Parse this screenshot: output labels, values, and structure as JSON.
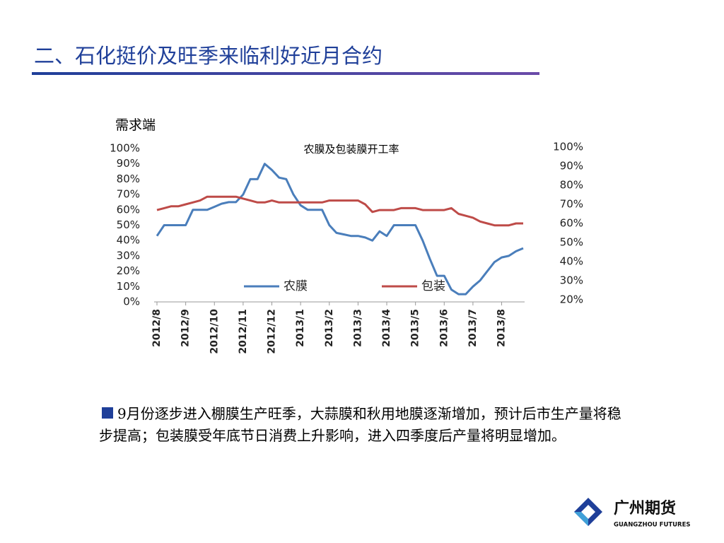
{
  "header": {
    "title": "二、石化挺价及旺季来临利好近月合约"
  },
  "section_label": "需求端",
  "chart_data": {
    "type": "line",
    "title": "农膜及包装膜开工率",
    "categories": [
      "2012/8",
      null,
      null,
      null,
      "2012/9",
      null,
      null,
      null,
      "2012/10",
      null,
      null,
      null,
      "2012/11",
      null,
      null,
      null,
      "2012/12",
      null,
      null,
      null,
      "2013/1",
      null,
      null,
      null,
      "2013/2",
      null,
      null,
      null,
      "2013/3",
      null,
      null,
      null,
      "2013/4",
      null,
      null,
      null,
      "2013/5",
      null,
      null,
      null,
      "2013/6",
      null,
      null,
      null,
      "2013/7",
      null,
      null,
      null,
      "2013/8",
      null,
      null,
      null
    ],
    "series": [
      {
        "name": "农膜",
        "color": "#4a7ebb",
        "values": [
          43,
          50,
          50,
          50,
          50,
          60,
          60,
          60,
          62,
          64,
          65,
          65,
          70,
          80,
          80,
          90,
          86,
          81,
          80,
          70,
          63,
          60,
          60,
          60,
          50,
          45,
          44,
          43,
          43,
          42,
          40,
          46,
          43,
          50,
          50,
          50,
          50,
          40,
          28,
          17,
          17,
          8,
          5,
          5,
          10,
          14,
          20,
          26,
          29,
          30,
          33,
          35
        ]
      },
      {
        "name": "包装",
        "color": "#be4b48",
        "axis": "y2",
        "values": [
          67,
          68,
          69,
          69,
          70,
          71,
          72,
          74,
          74,
          74,
          74,
          74,
          73,
          72,
          71,
          71,
          72,
          71,
          71,
          71,
          71,
          71,
          71,
          71,
          72,
          72,
          72,
          72,
          72,
          70,
          66,
          67,
          67,
          67,
          68,
          68,
          68,
          67,
          67,
          67,
          67,
          68,
          65,
          64,
          63,
          61,
          60,
          59,
          59,
          59,
          60,
          60
        ]
      }
    ],
    "ylim": [
      0,
      100
    ],
    "yticks": [
      {
        "value": 0,
        "label": "0%"
      },
      {
        "value": 10,
        "label": "10%"
      },
      {
        "value": 20,
        "label": "20%"
      },
      {
        "value": 30,
        "label": "30%"
      },
      {
        "value": 40,
        "label": "40%"
      },
      {
        "value": 50,
        "label": "50%"
      },
      {
        "value": 60,
        "label": "60%"
      },
      {
        "value": 70,
        "label": "70%"
      },
      {
        "value": 80,
        "label": "80%"
      },
      {
        "value": 90,
        "label": "90%"
      },
      {
        "value": 100,
        "label": "100%"
      }
    ],
    "y2lim": [
      20,
      100
    ],
    "y2ticks": [
      {
        "value": 20,
        "label": "20%"
      },
      {
        "value": 30,
        "label": "30%"
      },
      {
        "value": 40,
        "label": "40%"
      },
      {
        "value": 50,
        "label": "50%"
      },
      {
        "value": 60,
        "label": "60%"
      },
      {
        "value": 70,
        "label": "70%"
      },
      {
        "value": 80,
        "label": "80%"
      },
      {
        "value": 90,
        "label": "90%"
      },
      {
        "value": 100,
        "label": "100%"
      }
    ],
    "legend": "bottom"
  },
  "body": {
    "text": "9月份逐步进入棚膜生产旺季，大蒜膜和秋用地膜逐渐增加，预计后市生产量将稳步提高；包装膜受年底节日消费上升影响，进入四季度后产量将明显增加。"
  },
  "logo": {
    "name": "广州期货",
    "subtitle": "GUANGZHOU FUTURES"
  }
}
